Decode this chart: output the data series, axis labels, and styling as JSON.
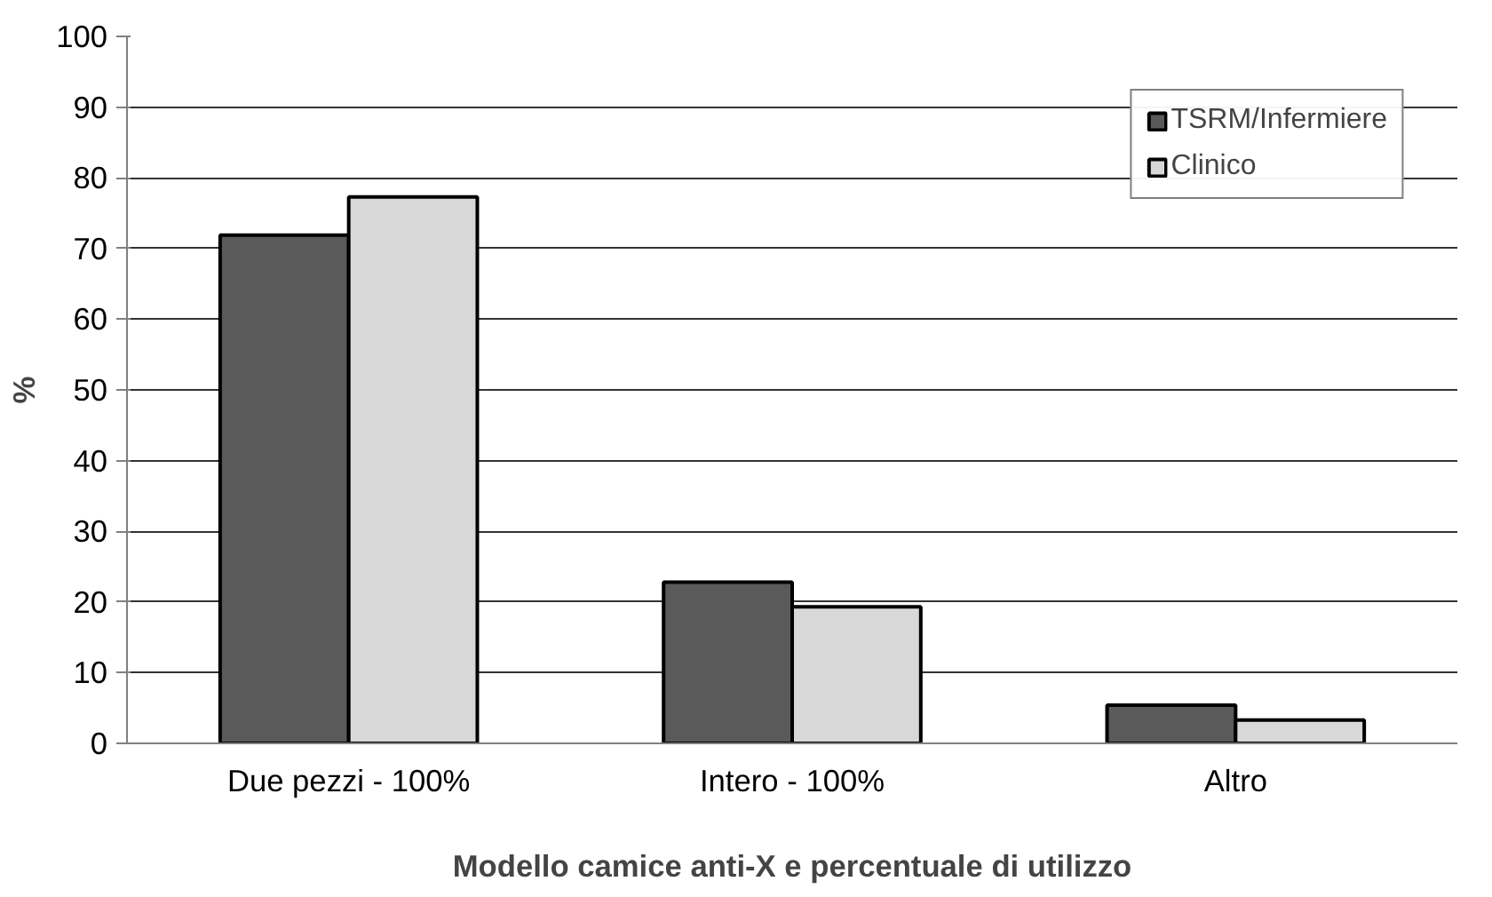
{
  "chart_data": {
    "type": "bar",
    "xlabel": "Modello camice anti-X e percentuale di utilizzo",
    "ylabel": "%",
    "categories": [
      "Due pezzi - 100%",
      "Intero - 100%",
      "Altro"
    ],
    "series": [
      {
        "name": "TSRM/Infermiere",
        "color": "#5a5a5a",
        "values": [
          71.9,
          22.8,
          5.4
        ]
      },
      {
        "name": "Clinico",
        "color": "#d8d8d8",
        "values": [
          77.3,
          19.3,
          3.3
        ]
      }
    ],
    "ylim": [
      0,
      100
    ],
    "yticks": [
      0,
      10,
      20,
      30,
      40,
      50,
      60,
      70,
      80,
      90,
      100
    ],
    "grid": "y",
    "legend": "top right"
  }
}
